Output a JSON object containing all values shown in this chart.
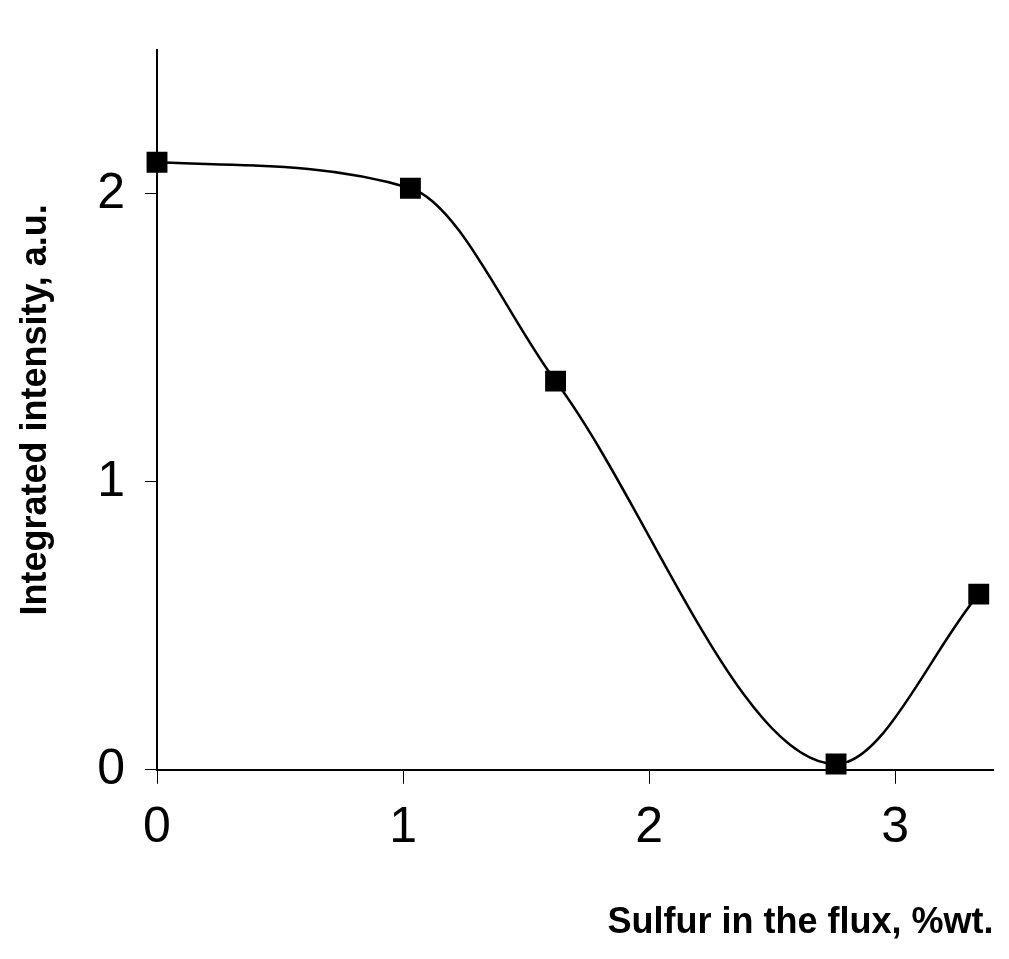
{
  "chart_data": {
    "type": "line",
    "xlabel": "Sulfur in the flux, %wt.",
    "ylabel": "Integrated intensity, a.u.",
    "x": [
      0,
      1.03,
      1.62,
      2.76,
      3.34
    ],
    "series": [
      {
        "color": "#000000",
        "values": [
          2.11,
          2.02,
          1.35,
          0.02,
          0.61
        ]
      }
    ],
    "xlim": [
      0,
      3.4
    ],
    "xticks": [
      0,
      1,
      2,
      3
    ],
    "ylim": [
      0,
      2.5
    ],
    "yticks": [
      0,
      1,
      2
    ],
    "grid": false,
    "legend": false,
    "marker": "square",
    "line_style": "solid"
  }
}
